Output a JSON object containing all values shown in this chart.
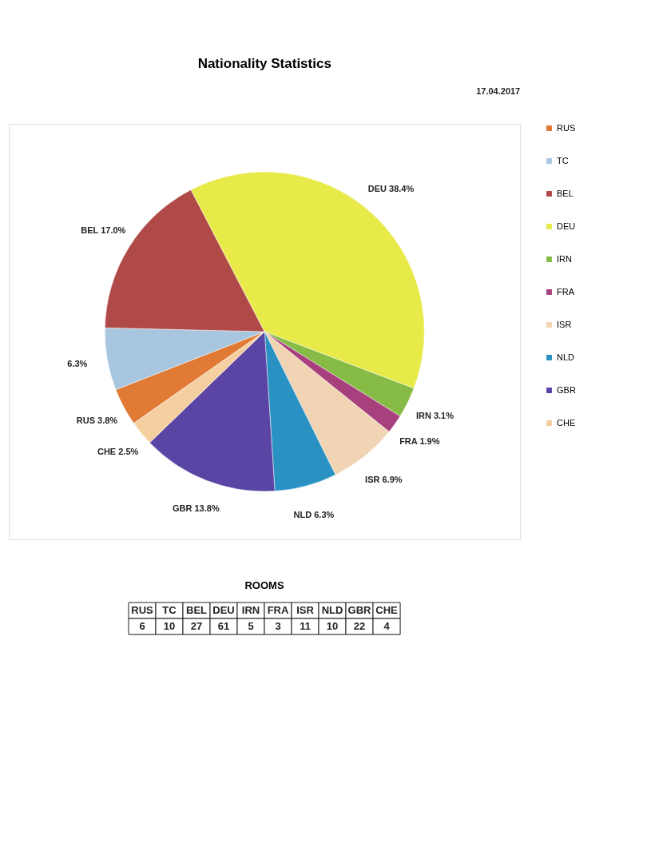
{
  "chart_data": [
    {
      "type": "pie",
      "title": "Nationality Statistics",
      "categories": [
        "RUS",
        "TC",
        "BEL",
        "DEU",
        "IRN",
        "FRA",
        "ISR",
        "NLD",
        "GBR",
        "CHE"
      ],
      "values": [
        3.8,
        6.3,
        17.0,
        38.4,
        3.1,
        1.9,
        6.9,
        6.3,
        13.8,
        2.5
      ],
      "colors": [
        "#e07a35",
        "#a8c6df",
        "#b04a48",
        "#e8ea4a",
        "#86bb46",
        "#a8407e",
        "#f1d4b4",
        "#2a92c2",
        "#5a45a5",
        "#f5cfa0"
      ],
      "value_labels": [
        "RUS 3.8%",
        "6.3%",
        "BEL 17.0%",
        "DEU 38.4%",
        "IRN 3.1%",
        "FRA 1.9%",
        "ISR 6.9%",
        "NLD 6.3%",
        "GBR 13.8%",
        "CHE 2.5%"
      ],
      "legend": "right",
      "annotations": [
        "17.04.2017"
      ]
    },
    {
      "type": "other",
      "title": "ROOMS",
      "categories": [
        "RUS",
        "TC",
        "BEL",
        "DEU",
        "IRN",
        "FRA",
        "ISR",
        "NLD",
        "GBR",
        "CHE"
      ],
      "values": [
        6,
        10,
        27,
        61,
        5,
        3,
        11,
        10,
        22,
        4
      ],
      "data_labels": true
    }
  ]
}
